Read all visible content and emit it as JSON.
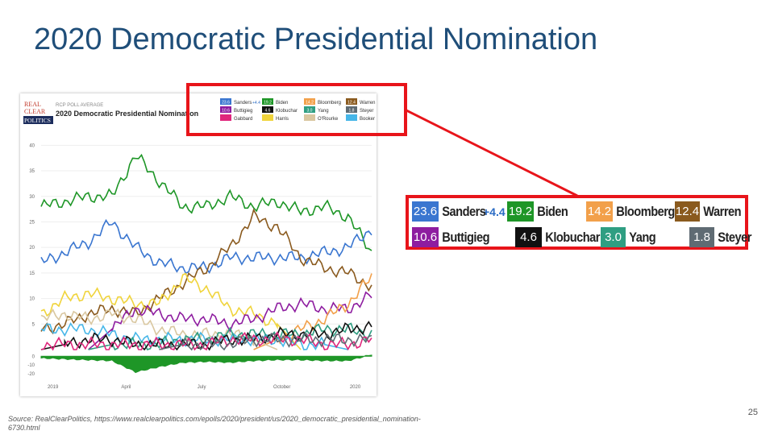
{
  "slide": {
    "title": "2020 Democratic Presidential Nomination",
    "source": "Source: RealClearPolitics, https://www.realclearpolitics.com/epolls/2020/president/us/2020_democratic_presidential_nomination-6730.html",
    "page_number": "25"
  },
  "rcp": {
    "logo": [
      "REAL",
      "CLEAR",
      "POLITICS"
    ],
    "header_small": "RCP POLL AVERAGE",
    "header_title": "2020 Democratic Presidential Nomination"
  },
  "zoomed_legend": [
    {
      "name": "Sanders",
      "value": "23.6",
      "change": "+4.4",
      "color": "#3a76d0"
    },
    {
      "name": "Biden",
      "value": "19.2",
      "color": "#1e9627"
    },
    {
      "name": "Bloomberg",
      "value": "14.2",
      "color": "#f2a04a"
    },
    {
      "name": "Warren",
      "value": "12.4",
      "color": "#8a5a1e"
    },
    {
      "name": "Buttigieg",
      "value": "10.6",
      "color": "#8e1da0"
    },
    {
      "name": "Klobuchar",
      "value": "4.6",
      "color": "#111111"
    },
    {
      "name": "Yang",
      "value": "3.0",
      "color": "#2f9e82"
    },
    {
      "name": "Steyer",
      "value": "1.8",
      "color": "#5f6b73"
    }
  ],
  "chart_data": {
    "type": "line",
    "title": "2020 Democratic Presidential Nomination",
    "subtitle": "RCP POLL AVERAGE",
    "xlabel": "",
    "ylabel": "",
    "x_ticks": [
      "2019",
      "April",
      "July",
      "October",
      "2020"
    ],
    "y_ticks": [
      40,
      35,
      30,
      25,
      20,
      15,
      10,
      5
    ],
    "ylim": [
      0,
      41
    ],
    "xlim": [
      0,
      14
    ],
    "grid": true,
    "legend": [
      {
        "name": "Sanders",
        "value": "23.6",
        "change": "+4.4",
        "color": "#3a76d0"
      },
      {
        "name": "Biden",
        "value": "19.2",
        "color": "#1e9627"
      },
      {
        "name": "Bloomberg",
        "value": "14.2",
        "color": "#f2a04a"
      },
      {
        "name": "Warren",
        "value": "12.4",
        "color": "#8a5a1e"
      },
      {
        "name": "Buttigieg",
        "value": "10.6",
        "color": "#8e1da0"
      },
      {
        "name": "Klobuchar",
        "value": "4.6",
        "color": "#111111"
      },
      {
        "name": "Yang",
        "value": "3.0",
        "color": "#2f9e82"
      },
      {
        "name": "Steyer",
        "value": "1.8",
        "color": "#5f6b73"
      },
      {
        "name": "Gabbard",
        "value": "",
        "color": "#e0267c"
      },
      {
        "name": "Harris",
        "value": "",
        "color": "#f0d43c"
      },
      {
        "name": "O'Rourke",
        "value": "",
        "color": "#d9c7a0"
      },
      {
        "name": "Booker",
        "value": "",
        "color": "#46b6e8"
      }
    ],
    "x": [
      0,
      1,
      2,
      3,
      4,
      5,
      6,
      7,
      8,
      9,
      10,
      11,
      12,
      13,
      14
    ],
    "series": [
      {
        "name": "Biden",
        "color": "#1e9627",
        "values": [
          28,
          29,
          30,
          30,
          38,
          33,
          28,
          28,
          30,
          28,
          29,
          27,
          28,
          26,
          19
        ]
      },
      {
        "name": "Sanders",
        "color": "#3a76d0",
        "values": [
          17,
          19,
          21,
          25,
          20,
          17,
          16,
          16,
          18,
          18,
          18,
          18,
          19,
          20,
          23.6
        ]
      },
      {
        "name": "Warren",
        "color": "#8a5a1e",
        "values": [
          4,
          5,
          7,
          8,
          7,
          10,
          13,
          16,
          20,
          26,
          24,
          18,
          16,
          15,
          12.4
        ]
      },
      {
        "name": "Harris",
        "color": "#f0d43c",
        "values": [
          7,
          10,
          11,
          10,
          9,
          9,
          14,
          12,
          8,
          7,
          5,
          0,
          0,
          0,
          0
        ]
      },
      {
        "name": "Buttigieg",
        "color": "#8e1da0",
        "values": [
          0,
          0,
          0,
          4,
          8,
          7,
          6,
          6,
          5,
          6,
          8,
          9,
          8,
          8,
          10.6
        ]
      },
      {
        "name": "Bloomberg",
        "color": "#f2a04a",
        "values": [
          0,
          0,
          0,
          0,
          0,
          0,
          0,
          0,
          0,
          0,
          2,
          4,
          6,
          9,
          14.2
        ]
      },
      {
        "name": "O'Rourke",
        "color": "#d9c7a0",
        "values": [
          6,
          7,
          6,
          7,
          6,
          4,
          3,
          3,
          3,
          2,
          0,
          0,
          0,
          0,
          0
        ]
      },
      {
        "name": "Booker",
        "color": "#46b6e8",
        "values": [
          4,
          4,
          4,
          3,
          2,
          2,
          2,
          2,
          2,
          2,
          2,
          1,
          1,
          0,
          0
        ]
      },
      {
        "name": "Yang",
        "color": "#2f9e82",
        "values": [
          0,
          0,
          0,
          1,
          1,
          1,
          2,
          2,
          3,
          3,
          3,
          3,
          4,
          4,
          3.0
        ]
      },
      {
        "name": "Klobuchar",
        "color": "#111111",
        "values": [
          0,
          1,
          2,
          2,
          1,
          1,
          1,
          1,
          2,
          2,
          3,
          3,
          3,
          4,
          4.6
        ]
      },
      {
        "name": "Gabbard",
        "color": "#e0267c",
        "values": [
          1,
          1,
          1,
          1,
          1,
          1,
          1,
          1,
          2,
          2,
          2,
          2,
          1,
          1,
          2
        ]
      },
      {
        "name": "Steyer",
        "color": "#5f6b73",
        "values": [
          0,
          0,
          0,
          0,
          0,
          0,
          1,
          1,
          1,
          2,
          2,
          2,
          2,
          2,
          1.8
        ]
      }
    ],
    "spread": {
      "name": "Spread",
      "color": "#1e9627",
      "y_ticks": [
        0,
        -10,
        -20
      ],
      "values": [
        -2,
        -3,
        -4,
        -5,
        -18,
        -12,
        -7,
        -6,
        -7,
        -5,
        -4,
        -4,
        -5,
        -5,
        2
      ]
    }
  }
}
